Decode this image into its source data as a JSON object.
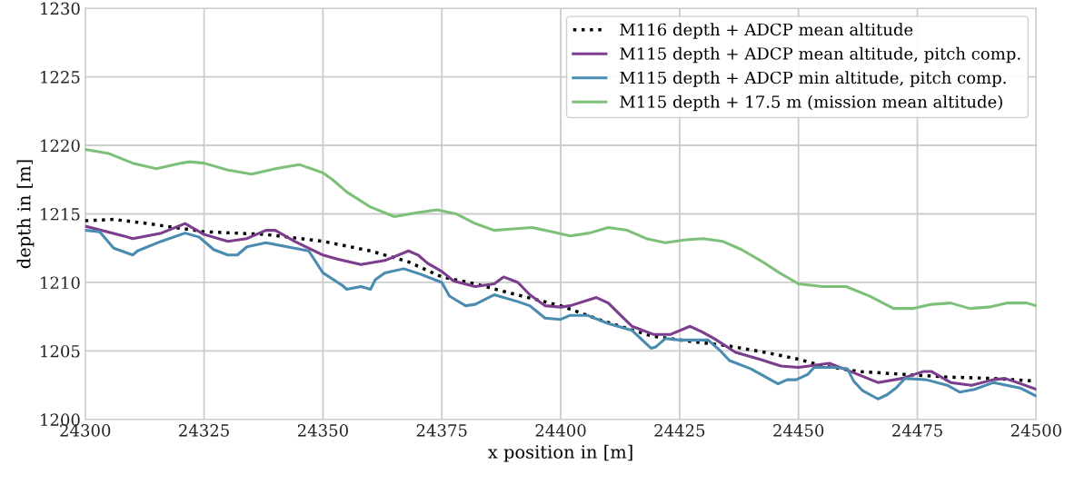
{
  "chart_data": {
    "type": "line",
    "xlabel": "x position in [m]",
    "ylabel": "depth in [m]",
    "xlim": [
      24300,
      24500
    ],
    "ylim": [
      1200,
      1230
    ],
    "xticks": [
      24300,
      24325,
      24350,
      24375,
      24400,
      24425,
      24450,
      24475,
      24500
    ],
    "yticks": [
      1200,
      1205,
      1210,
      1215,
      1220,
      1225,
      1230
    ],
    "grid": true,
    "legend": "top right",
    "series": [
      {
        "name": "M116 depth + ADCP mean altitude",
        "color": "#000000",
        "line_style": "dotted",
        "x": [
          24300,
          24306,
          24313,
          24319,
          24325,
          24338,
          24350,
          24360,
          24368,
          24375,
          24382,
          24389.6,
          24400,
          24408.8,
          24419,
          24427.2,
          24434.8,
          24443,
          24450,
          24455.2,
          24462.9,
          24471.8,
          24481.3,
          24490.9,
          24500
        ],
        "values": [
          1214.5,
          1214.6,
          1214.3,
          1214.0,
          1213.7,
          1213.5,
          1213.0,
          1212.3,
          1211.5,
          1210.4,
          1209.9,
          1209.2,
          1208.3,
          1207.2,
          1206.1,
          1205.7,
          1205.4,
          1204.9,
          1204.4,
          1203.9,
          1203.5,
          1203.3,
          1203.1,
          1203.0,
          1202.8
        ]
      },
      {
        "name": "M115 depth + ADCP mean altitude, pitch comp.",
        "color": "#7b3d8c",
        "line_style": "solid",
        "x": [
          24300,
          24308,
          24310,
          24316,
          24321,
          24323,
          24325,
          24330,
          24334,
          24338,
          24340,
          24344,
          24350,
          24353,
          24358,
          24363,
          24368,
          24370,
          24372,
          24375,
          24377.5,
          24382,
          24386,
          24388,
          24391,
          24393.5,
          24396.7,
          24400,
          24402,
          24407.5,
          24410,
          24412.6,
          24415,
          24419.6,
          24423,
          24427.2,
          24429.7,
          24432.3,
          24436.8,
          24441.8,
          24446.3,
          24450,
          24456.5,
          24460.3,
          24466.7,
          24471.8,
          24476.2,
          24478,
          24482,
          24486.4,
          24490.9,
          24493.4,
          24496,
          24500
        ],
        "values": [
          1214.1,
          1213.4,
          1213.2,
          1213.6,
          1214.3,
          1213.9,
          1213.5,
          1213.0,
          1213.2,
          1213.8,
          1213.8,
          1213.0,
          1212.0,
          1211.7,
          1211.3,
          1211.6,
          1212.3,
          1212.0,
          1211.4,
          1210.8,
          1210.1,
          1209.7,
          1209.9,
          1210.4,
          1210.0,
          1209.1,
          1208.3,
          1208.2,
          1208.3,
          1208.9,
          1208.5,
          1207.6,
          1206.8,
          1206.2,
          1206.2,
          1206.8,
          1206.4,
          1205.9,
          1204.9,
          1204.4,
          1203.9,
          1203.8,
          1204.1,
          1203.6,
          1202.7,
          1203.0,
          1203.5,
          1203.5,
          1202.7,
          1202.5,
          1202.9,
          1203.0,
          1202.7,
          1202.2
        ]
      },
      {
        "name": "M115 depth + ADCP min altitude, pitch comp.",
        "color": "#4a8bb0",
        "line_style": "solid",
        "x": [
          24300,
          24303,
          24306,
          24310,
          24311,
          24316,
          24321,
          24324,
          24327,
          24330,
          24332,
          24334,
          24338,
          24344,
          24347,
          24350,
          24354,
          24355,
          24358,
          24360,
          24361,
          24363,
          24367,
          24370.5,
          24375,
          24376.6,
          24380,
          24382,
          24386,
          24391,
          24393.5,
          24396.7,
          24400,
          24402,
          24405.6,
          24410,
          24415,
          24419,
          24420,
          24422,
          24425,
          24431,
          24433.6,
          24435.5,
          24440,
          24445.7,
          24447.6,
          24449.5,
          24452,
          24453.3,
          24457.8,
          24460.3,
          24461.6,
          24463.5,
          24466.7,
          24468.6,
          24470.5,
          24472.4,
          24476.9,
          24481.3,
          24483.9,
          24487,
          24491,
          24496.6,
          24500
        ],
        "values": [
          1213.8,
          1213.7,
          1212.5,
          1212.0,
          1212.3,
          1213.0,
          1213.6,
          1213.3,
          1212.4,
          1212.0,
          1212.0,
          1212.6,
          1212.9,
          1212.5,
          1212.3,
          1210.7,
          1209.8,
          1209.5,
          1209.7,
          1209.5,
          1210.2,
          1210.7,
          1211.0,
          1210.6,
          1210.0,
          1209.0,
          1208.3,
          1208.4,
          1209.1,
          1208.6,
          1208.3,
          1207.4,
          1207.3,
          1207.6,
          1207.6,
          1207.0,
          1206.5,
          1205.2,
          1205.3,
          1205.9,
          1205.8,
          1205.8,
          1205.0,
          1204.3,
          1203.7,
          1202.6,
          1202.9,
          1202.9,
          1203.3,
          1203.8,
          1203.8,
          1203.7,
          1202.8,
          1202.1,
          1201.5,
          1201.8,
          1202.3,
          1203.0,
          1202.9,
          1202.5,
          1202.0,
          1202.2,
          1202.7,
          1202.3,
          1201.7
        ]
      },
      {
        "name": "M115 depth + 17.5 m (mission mean altitude)",
        "color": "#7dc07a",
        "line_style": "solid",
        "x": [
          24300,
          24305,
          24310,
          24315,
          24320,
          24322,
          24325,
          24330,
          24335,
          24340,
          24345,
          24350,
          24352,
          24355,
          24360,
          24365,
          24370,
          24374,
          24378,
          24382,
          24386,
          24390,
          24394,
          24398,
          24402,
          24406,
          24410,
          24414,
          24418,
          24422,
          24426,
          24430,
          24434,
          24438,
          24442,
          24446,
          24450,
          24455,
          24460,
          24465,
          24470,
          24474,
          24478,
          24482,
          24486,
          24490,
          24494,
          24498,
          24500
        ],
        "values": [
          1219.7,
          1219.4,
          1218.7,
          1218.3,
          1218.7,
          1218.8,
          1218.7,
          1218.2,
          1217.9,
          1218.3,
          1218.6,
          1218.0,
          1217.5,
          1216.6,
          1215.5,
          1214.8,
          1215.1,
          1215.3,
          1215.0,
          1214.3,
          1213.8,
          1213.9,
          1214.0,
          1213.7,
          1213.4,
          1213.6,
          1214.0,
          1213.8,
          1213.2,
          1212.9,
          1213.1,
          1213.2,
          1213.0,
          1212.4,
          1211.6,
          1210.7,
          1209.9,
          1209.7,
          1209.7,
          1209.0,
          1208.1,
          1208.1,
          1208.4,
          1208.5,
          1208.1,
          1208.2,
          1208.5,
          1208.5,
          1208.3
        ]
      }
    ]
  }
}
